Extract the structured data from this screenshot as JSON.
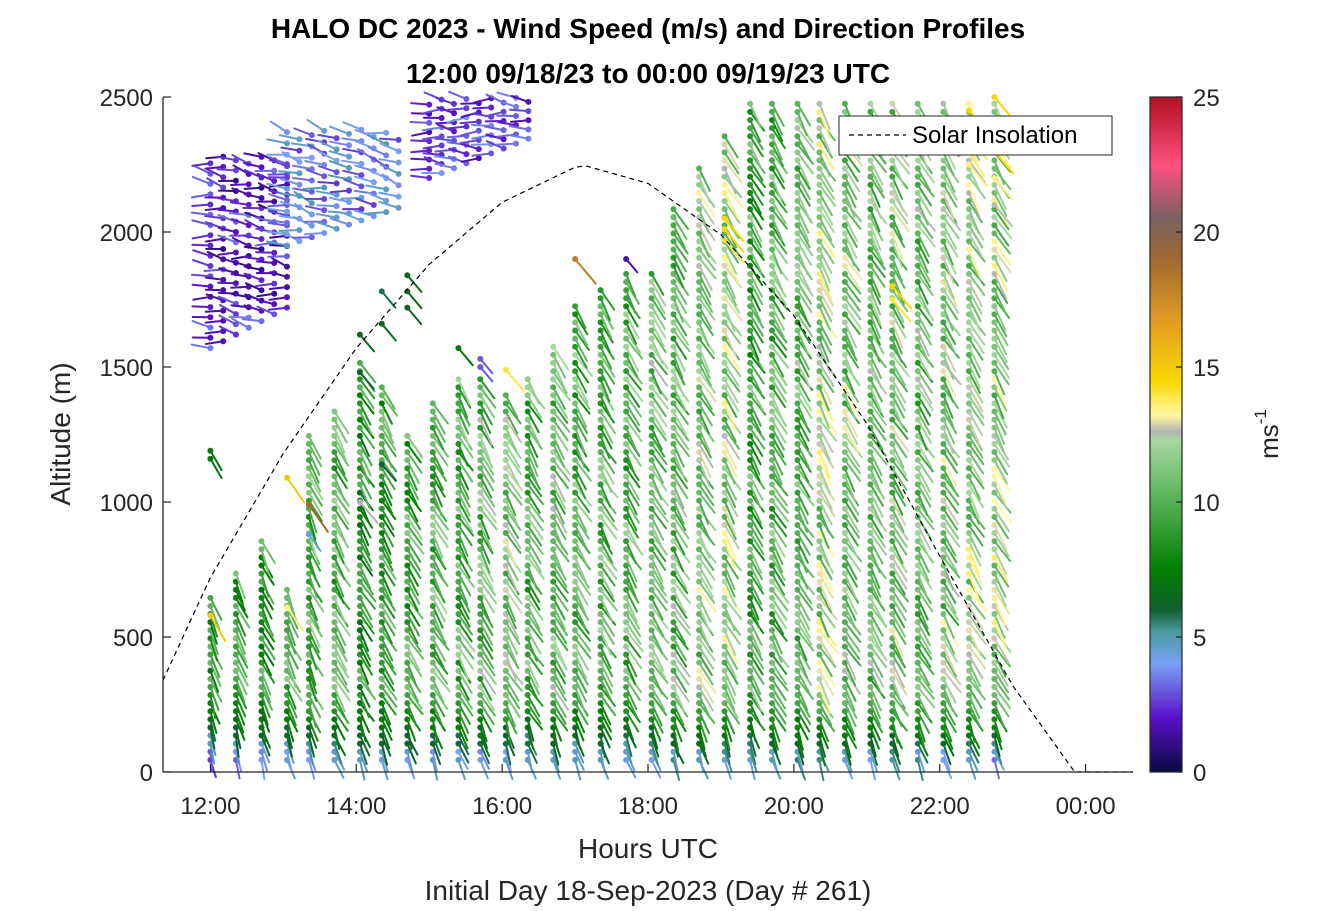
{
  "chart_data": {
    "type": "wind-barb-profile",
    "title_line1": "HALO DC 2023 - Wind Speed (m/s) and Direction Profiles",
    "title_line2": "12:00 09/18/23 to 00:00 09/19/23  UTC",
    "xlabel": "Hours UTC",
    "subtitle": "Initial Day 18-Sep-2023 (Day # 261)",
    "ylabel": "Altitude (m)",
    "xlim": [
      11.35,
      24.65
    ],
    "ylim": [
      0,
      2500
    ],
    "x_ticks": [
      12,
      14,
      16,
      18,
      20,
      22,
      24
    ],
    "x_tick_labels": [
      "12:00",
      "14:00",
      "16:00",
      "18:00",
      "20:00",
      "22:00",
      "00:00"
    ],
    "y_ticks": [
      0,
      500,
      1000,
      1500,
      2000,
      2500
    ],
    "y_tick_labels": [
      "0",
      "500",
      "1000",
      "1500",
      "2000",
      "2500"
    ],
    "legend": {
      "entries": [
        "Solar Insolation"
      ],
      "placement": "top-right"
    },
    "colorbar": {
      "label_base": "ms",
      "label_exp": "-1",
      "range": [
        0,
        25
      ],
      "ticks": [
        0,
        5,
        10,
        15,
        20,
        25
      ],
      "stops": [
        {
          "value": 0,
          "color": "#0a0a40"
        },
        {
          "value": 2,
          "color": "#5a10c8"
        },
        {
          "value": 4,
          "color": "#7aa0f8"
        },
        {
          "value": 5.2,
          "color": "#4a9aa0"
        },
        {
          "value": 6,
          "color": "#106030"
        },
        {
          "value": 7.5,
          "color": "#008000"
        },
        {
          "value": 10,
          "color": "#55b055"
        },
        {
          "value": 12.3,
          "color": "#a8d8a0"
        },
        {
          "value": 12.6,
          "color": "#b4b4b4"
        },
        {
          "value": 13.2,
          "color": "#fff8a0"
        },
        {
          "value": 14.5,
          "color": "#f8d800"
        },
        {
          "value": 16.5,
          "color": "#e8a020"
        },
        {
          "value": 19,
          "color": "#a06a30"
        },
        {
          "value": 20.5,
          "color": "#7a6060"
        },
        {
          "value": 22.5,
          "color": "#ff5080"
        },
        {
          "value": 25,
          "color": "#b01020"
        }
      ]
    },
    "solar_insolation": {
      "style": "dashed",
      "points": [
        [
          11.35,
          340
        ],
        [
          12,
          720
        ],
        [
          13,
          1180
        ],
        [
          14,
          1570
        ],
        [
          15,
          1880
        ],
        [
          16,
          2110
        ],
        [
          17,
          2240
        ],
        [
          17.15,
          2245
        ],
        [
          18,
          2180
        ],
        [
          19,
          1990
        ],
        [
          20,
          1690
        ],
        [
          21,
          1290
        ],
        [
          22,
          800
        ],
        [
          23,
          320
        ],
        [
          23.85,
          0
        ],
        [
          24.65,
          0
        ]
      ]
    },
    "profiles": [
      {
        "t": 12.0,
        "top": 660,
        "main_speed": 8.5,
        "low_speed": 3.5,
        "dir": 200,
        "extra": [
          [
            1190,
            7
          ],
          [
            1160,
            7
          ],
          [
            580,
            15
          ]
        ]
      },
      {
        "t": 12.35,
        "top": 760,
        "main_speed": 9,
        "low_speed": 4,
        "dir": 205,
        "extra": []
      },
      {
        "t": 12.7,
        "top": 870,
        "main_speed": 9,
        "low_speed": 4,
        "dir": 205,
        "extra": []
      },
      {
        "t": 13.05,
        "top": 700,
        "main_speed": 9.5,
        "low_speed": 4,
        "dir": 205,
        "extra": [
          [
            1090,
            15
          ],
          [
            610,
            13.5
          ]
        ]
      },
      {
        "t": 13.35,
        "top": 1250,
        "main_speed": 10,
        "low_speed": 4.5,
        "dir": 205,
        "extra": [
          [
            990,
            19
          ],
          [
            880,
            4.5
          ]
        ]
      },
      {
        "t": 13.7,
        "top": 1360,
        "main_speed": 10,
        "low_speed": 4.5,
        "dir": 210,
        "extra": []
      },
      {
        "t": 14.05,
        "top": 1530,
        "main_speed": 8.5,
        "low_speed": 4.5,
        "dir": 210,
        "extra": [
          [
            1000,
            12.6
          ],
          [
            1620,
            6.5
          ],
          [
            1480,
            6
          ]
        ]
      },
      {
        "t": 14.35,
        "top": 1450,
        "main_speed": 9,
        "low_speed": 4.5,
        "dir": 210,
        "extra": [
          [
            1140,
            6
          ],
          [
            1780,
            5.8
          ],
          [
            1660,
            6.5
          ]
        ]
      },
      {
        "t": 14.7,
        "top": 1250,
        "main_speed": 9.5,
        "low_speed": 4.5,
        "dir": 210,
        "extra": [
          [
            1840,
            6.5
          ],
          [
            1780,
            6.8
          ],
          [
            1720,
            6.2
          ]
        ]
      },
      {
        "t": 15.05,
        "top": 1380,
        "main_speed": 10,
        "low_speed": 4.5,
        "dir": 210,
        "extra": []
      },
      {
        "t": 15.4,
        "top": 1480,
        "main_speed": 10,
        "low_speed": 4.5,
        "dir": 210,
        "extra": [
          [
            1570,
            7
          ]
        ]
      },
      {
        "t": 15.7,
        "top": 1470,
        "main_speed": 10.5,
        "low_speed": 4.5,
        "dir": 210,
        "extra": [
          [
            1530,
            3
          ],
          [
            1500,
            3
          ]
        ]
      },
      {
        "t": 16.05,
        "top": 1420,
        "main_speed": 11,
        "low_speed": 4.5,
        "dir": 210,
        "extra": [
          [
            1490,
            14
          ]
        ]
      },
      {
        "t": 16.35,
        "top": 1480,
        "main_speed": 10,
        "low_speed": 4.5,
        "dir": 210,
        "extra": []
      },
      {
        "t": 16.7,
        "top": 1580,
        "main_speed": 10.5,
        "low_speed": 4.5,
        "dir": 210,
        "extra": []
      },
      {
        "t": 17.0,
        "top": 1750,
        "main_speed": 10,
        "low_speed": 4.5,
        "dir": 210,
        "extra": [
          [
            1900,
            18
          ]
        ]
      },
      {
        "t": 17.35,
        "top": 1800,
        "main_speed": 10,
        "low_speed": 4.5,
        "dir": 210,
        "extra": []
      },
      {
        "t": 17.7,
        "top": 1850,
        "main_speed": 10,
        "low_speed": 4.5,
        "dir": 210,
        "extra": [
          [
            1900,
            1.5
          ]
        ]
      },
      {
        "t": 18.05,
        "top": 1850,
        "main_speed": 10.5,
        "low_speed": 4.5,
        "dir": 210,
        "extra": []
      },
      {
        "t": 18.35,
        "top": 2100,
        "main_speed": 10.5,
        "low_speed": 5,
        "dir": 210,
        "extra": []
      },
      {
        "t": 18.7,
        "top": 2250,
        "main_speed": 11,
        "low_speed": 5,
        "dir": 210,
        "extra": []
      },
      {
        "t": 19.05,
        "top": 2380,
        "main_speed": 11.5,
        "low_speed": 5,
        "dir": 210,
        "extra": [
          [
            2050,
            14.5
          ],
          [
            2010,
            14.5
          ],
          [
            1970,
            14
          ]
        ]
      },
      {
        "t": 19.4,
        "top": 2500,
        "main_speed": 9.5,
        "low_speed": 5,
        "dir": 210,
        "extra": []
      },
      {
        "t": 19.7,
        "top": 2500,
        "main_speed": 10,
        "low_speed": 5,
        "dir": 210,
        "extra": []
      },
      {
        "t": 20.05,
        "top": 2500,
        "main_speed": 10.5,
        "low_speed": 5,
        "dir": 210,
        "extra": []
      },
      {
        "t": 20.35,
        "top": 2500,
        "main_speed": 11.5,
        "low_speed": 5,
        "dir": 210,
        "extra": []
      },
      {
        "t": 20.7,
        "top": 2500,
        "main_speed": 11,
        "low_speed": 5,
        "dir": 210,
        "extra": []
      },
      {
        "t": 21.05,
        "top": 2500,
        "main_speed": 10.5,
        "low_speed": 5,
        "dir": 210,
        "extra": []
      },
      {
        "t": 21.35,
        "top": 2500,
        "main_speed": 11,
        "low_speed": 5,
        "dir": 210,
        "extra": [
          [
            1800,
            14.5
          ],
          [
            1750,
            14
          ]
        ]
      },
      {
        "t": 21.7,
        "top": 2500,
        "main_speed": 10.5,
        "low_speed": 5,
        "dir": 210,
        "extra": []
      },
      {
        "t": 22.05,
        "top": 2500,
        "main_speed": 11,
        "low_speed": 5,
        "dir": 210,
        "extra": []
      },
      {
        "t": 22.4,
        "top": 2500,
        "main_speed": 11.5,
        "low_speed": 5,
        "dir": 210,
        "extra": [
          [
            2450,
            14.5
          ],
          [
            2350,
            14
          ],
          [
            2250,
            13.5
          ]
        ]
      },
      {
        "t": 22.75,
        "top": 2500,
        "main_speed": 11.5,
        "low_speed": 4,
        "dir": 210,
        "extra": [
          [
            2500,
            14.5
          ],
          [
            2400,
            14.5
          ],
          [
            2300,
            14.5
          ],
          [
            2200,
            13.5
          ],
          [
            2100,
            12.5
          ]
        ]
      }
    ],
    "upper_cluster": {
      "t_start": 12.0,
      "t_end": 13.05,
      "alt_min": 1570,
      "alt_max": 2280,
      "speed": 2,
      "dir": 80
    },
    "upper_cluster_2": {
      "t_start": 13.05,
      "t_end": 14.7,
      "alt_min": 1950,
      "alt_max": 2380,
      "speed": 3.5,
      "dir": 75
    },
    "upper_cluster_3": {
      "t_start": 15.0,
      "t_end": 16.4,
      "alt_min": 2200,
      "alt_max": 2500,
      "speed": 2.5,
      "dir": 85
    }
  }
}
